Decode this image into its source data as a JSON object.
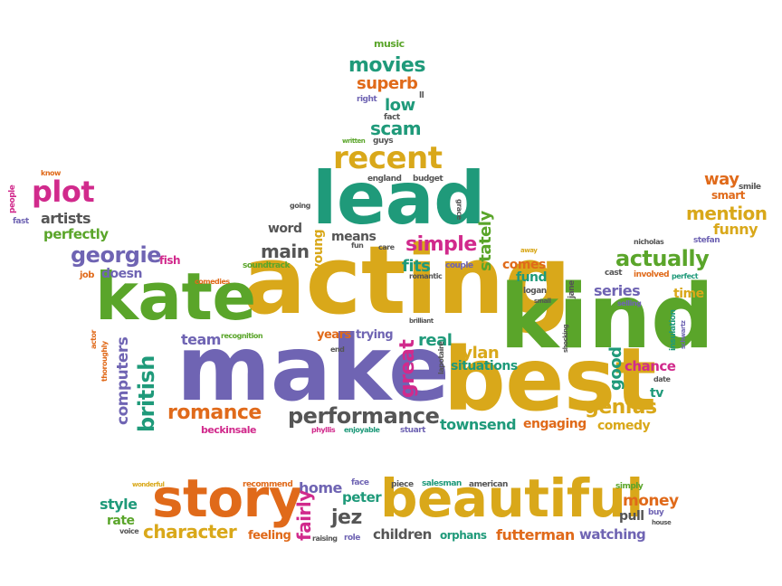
{
  "palette": {
    "green": "#5aa52a",
    "teal": "#1f9a7a",
    "purple": "#6f64b3",
    "gold": "#d9a81a",
    "orange": "#e06a1a",
    "magenta": "#d12a8c",
    "gray": "#555555"
  },
  "words": [
    {
      "id": "w-acting",
      "text": "acting",
      "color": "gold"
    },
    {
      "id": "w-make",
      "text": "make",
      "color": "purple"
    },
    {
      "id": "w-kind",
      "text": "kind",
      "color": "green"
    },
    {
      "id": "w-best",
      "text": "best",
      "color": "gold"
    },
    {
      "id": "w-kate",
      "text": "kate",
      "color": "green"
    },
    {
      "id": "w-lead",
      "text": "lead",
      "color": "teal"
    },
    {
      "id": "w-beautiful",
      "text": "beautiful",
      "color": "gold"
    },
    {
      "id": "w-story",
      "text": "story",
      "color": "orange"
    },
    {
      "id": "w-recent",
      "text": "recent",
      "color": "gold"
    },
    {
      "id": "w-plot",
      "text": "plot",
      "color": "magenta"
    },
    {
      "id": "w-movies",
      "text": "movies",
      "color": "teal"
    },
    {
      "id": "w-superb",
      "text": "superb",
      "color": "orange"
    },
    {
      "id": "w-low",
      "text": "low",
      "color": "teal"
    },
    {
      "id": "w-scam",
      "text": "scam",
      "color": "teal"
    },
    {
      "id": "w-music",
      "text": "music",
      "color": "green"
    },
    {
      "id": "w-right",
      "text": "right",
      "color": "purple"
    },
    {
      "id": "w-ll",
      "text": "ll",
      "color": "gray"
    },
    {
      "id": "w-fact",
      "text": "fact",
      "color": "gray"
    },
    {
      "id": "w-written",
      "text": "written",
      "color": "green"
    },
    {
      "id": "w-guys",
      "text": "guys",
      "color": "gray"
    },
    {
      "id": "w-england",
      "text": "england",
      "color": "gray"
    },
    {
      "id": "w-budget",
      "text": "budget",
      "color": "gray"
    },
    {
      "id": "w-grace",
      "text": "grace",
      "color": "gray"
    },
    {
      "id": "w-going",
      "text": "going",
      "color": "gray"
    },
    {
      "id": "w-word",
      "text": "word",
      "color": "gray"
    },
    {
      "id": "w-main",
      "text": "main",
      "color": "gray"
    },
    {
      "id": "w-young",
      "text": "young",
      "color": "gold"
    },
    {
      "id": "w-means",
      "text": "means",
      "color": "gray"
    },
    {
      "id": "w-simple",
      "text": "simple",
      "color": "magenta"
    },
    {
      "id": "w-stately",
      "text": "stately",
      "color": "green"
    },
    {
      "id": "w-fun",
      "text": "fun",
      "color": "gray"
    },
    {
      "id": "w-care",
      "text": "care",
      "color": "gray"
    },
    {
      "id": "w-fits",
      "text": "fits",
      "color": "teal"
    },
    {
      "id": "w-romantic",
      "text": "romantic",
      "color": "gray"
    },
    {
      "id": "w-couple",
      "text": "couple",
      "color": "purple"
    },
    {
      "id": "w-comes",
      "text": "comes",
      "color": "orange"
    },
    {
      "id": "w-away",
      "text": "away",
      "color": "gold"
    },
    {
      "id": "w-fund",
      "text": "fund",
      "color": "teal"
    },
    {
      "id": "w-small",
      "text": "small",
      "color": "gray"
    },
    {
      "id": "w-jane",
      "text": "jane",
      "color": "gray"
    },
    {
      "id": "w-logan",
      "text": "logan",
      "color": "gray"
    },
    {
      "id": "w-know",
      "text": "know",
      "color": "orange"
    },
    {
      "id": "w-people",
      "text": "people",
      "color": "magenta"
    },
    {
      "id": "w-fast",
      "text": "fast",
      "color": "purple"
    },
    {
      "id": "w-artists",
      "text": "artists",
      "color": "gray"
    },
    {
      "id": "w-perfectly",
      "text": "perfectly",
      "color": "green"
    },
    {
      "id": "w-georgie",
      "text": "georgie",
      "color": "purple"
    },
    {
      "id": "w-fish",
      "text": "fish",
      "color": "magenta"
    },
    {
      "id": "w-doesn",
      "text": "doesn",
      "color": "purple"
    },
    {
      "id": "w-job",
      "text": "job",
      "color": "orange"
    },
    {
      "id": "w-comedies",
      "text": "comedies",
      "color": "orange"
    },
    {
      "id": "w-soundtrack",
      "text": "soundtrack",
      "color": "green"
    },
    {
      "id": "w-way",
      "text": "way",
      "color": "orange"
    },
    {
      "id": "w-smile",
      "text": "smile",
      "color": "gray"
    },
    {
      "id": "w-smart",
      "text": "smart",
      "color": "orange"
    },
    {
      "id": "w-mention",
      "text": "mention",
      "color": "gold"
    },
    {
      "id": "w-funny",
      "text": "funny",
      "color": "gold"
    },
    {
      "id": "w-nicholas",
      "text": "nicholas",
      "color": "gray"
    },
    {
      "id": "w-stefan",
      "text": "stefan",
      "color": "purple"
    },
    {
      "id": "w-actually",
      "text": "actually",
      "color": "green"
    },
    {
      "id": "w-cast",
      "text": "cast",
      "color": "gray"
    },
    {
      "id": "w-involved",
      "text": "involved",
      "color": "orange"
    },
    {
      "id": "w-perfect",
      "text": "perfect",
      "color": "teal"
    },
    {
      "id": "w-series",
      "text": "series",
      "color": "purple"
    },
    {
      "id": "w-time",
      "text": "time",
      "color": "gold"
    },
    {
      "id": "w-selling",
      "text": "selling",
      "color": "purple"
    },
    {
      "id": "w-insulation",
      "text": "insulation",
      "color": "teal"
    },
    {
      "id": "w-schwartz",
      "text": "schwartz",
      "color": "purple"
    },
    {
      "id": "w-team",
      "text": "team",
      "color": "purple"
    },
    {
      "id": "w-recognition",
      "text": "recognition",
      "color": "green"
    },
    {
      "id": "w-years",
      "text": "years",
      "color": "orange"
    },
    {
      "id": "w-trying",
      "text": "trying",
      "color": "purple"
    },
    {
      "id": "w-end",
      "text": "end",
      "color": "gray"
    },
    {
      "id": "w-real",
      "text": "real",
      "color": "teal"
    },
    {
      "id": "w-brilliant",
      "text": "brilliant",
      "color": "gray"
    },
    {
      "id": "w-great",
      "text": "great",
      "color": "magenta"
    },
    {
      "id": "w-dylan",
      "text": "dylan",
      "color": "gold"
    },
    {
      "id": "w-situations",
      "text": "situations",
      "color": "teal"
    },
    {
      "id": "w-lapotaire",
      "text": "lapotaire",
      "color": "gray"
    },
    {
      "id": "w-shocking",
      "text": "shocking",
      "color": "gray"
    },
    {
      "id": "w-good",
      "text": "good",
      "color": "teal"
    },
    {
      "id": "w-chance",
      "text": "chance",
      "color": "magenta"
    },
    {
      "id": "w-tv",
      "text": "tv",
      "color": "teal"
    },
    {
      "id": "w-date",
      "text": "date",
      "color": "gray"
    },
    {
      "id": "w-actor",
      "text": "actor",
      "color": "orange"
    },
    {
      "id": "w-thoroughly",
      "text": "thoroughly",
      "color": "orange"
    },
    {
      "id": "w-computers",
      "text": "computers",
      "color": "purple"
    },
    {
      "id": "w-british",
      "text": "british",
      "color": "teal"
    },
    {
      "id": "w-romance",
      "text": "romance",
      "color": "orange"
    },
    {
      "id": "w-beckinsale",
      "text": "beckinsale",
      "color": "magenta"
    },
    {
      "id": "w-performance",
      "text": "performance",
      "color": "gray"
    },
    {
      "id": "w-phyllis",
      "text": "phyllis",
      "color": "magenta"
    },
    {
      "id": "w-enjoyable",
      "text": "enjoyable",
      "color": "teal"
    },
    {
      "id": "w-stuart",
      "text": "stuart",
      "color": "purple"
    },
    {
      "id": "w-townsend",
      "text": "townsend",
      "color": "teal"
    },
    {
      "id": "w-engaging",
      "text": "engaging",
      "color": "orange"
    },
    {
      "id": "w-genius",
      "text": "genius",
      "color": "gold"
    },
    {
      "id": "w-comedy",
      "text": "comedy",
      "color": "gold"
    },
    {
      "id": "w-wonderful",
      "text": "wonderful",
      "color": "gold"
    },
    {
      "id": "w-recommend",
      "text": "recommend",
      "color": "orange"
    },
    {
      "id": "w-home",
      "text": "home",
      "color": "purple"
    },
    {
      "id": "w-face",
      "text": "face",
      "color": "purple"
    },
    {
      "id": "w-piece",
      "text": "piece",
      "color": "gray"
    },
    {
      "id": "w-salesman",
      "text": "salesman",
      "color": "teal"
    },
    {
      "id": "w-american",
      "text": "american",
      "color": "gray"
    },
    {
      "id": "w-simply",
      "text": "simply",
      "color": "green"
    },
    {
      "id": "w-style",
      "text": "style",
      "color": "teal"
    },
    {
      "id": "w-rate",
      "text": "rate",
      "color": "green"
    },
    {
      "id": "w-voice",
      "text": "voice",
      "color": "gray"
    },
    {
      "id": "w-character",
      "text": "character",
      "color": "gold"
    },
    {
      "id": "w-feeling",
      "text": "feeling",
      "color": "orange"
    },
    {
      "id": "w-fairly",
      "text": "fairly",
      "color": "magenta"
    },
    {
      "id": "w-raising",
      "text": "raising",
      "color": "gray"
    },
    {
      "id": "w-role",
      "text": "role",
      "color": "purple"
    },
    {
      "id": "w-peter",
      "text": "peter",
      "color": "teal"
    },
    {
      "id": "w-jez",
      "text": "jez",
      "color": "gray"
    },
    {
      "id": "w-children",
      "text": "children",
      "color": "gray"
    },
    {
      "id": "w-orphans",
      "text": "orphans",
      "color": "teal"
    },
    {
      "id": "w-futterman",
      "text": "futterman",
      "color": "orange"
    },
    {
      "id": "w-watching",
      "text": "watching",
      "color": "purple"
    },
    {
      "id": "w-money",
      "text": "money",
      "color": "orange"
    },
    {
      "id": "w-pull",
      "text": "pull",
      "color": "gray"
    },
    {
      "id": "w-buy",
      "text": "buy",
      "color": "purple"
    },
    {
      "id": "w-house",
      "text": "house",
      "color": "gray"
    }
  ]
}
